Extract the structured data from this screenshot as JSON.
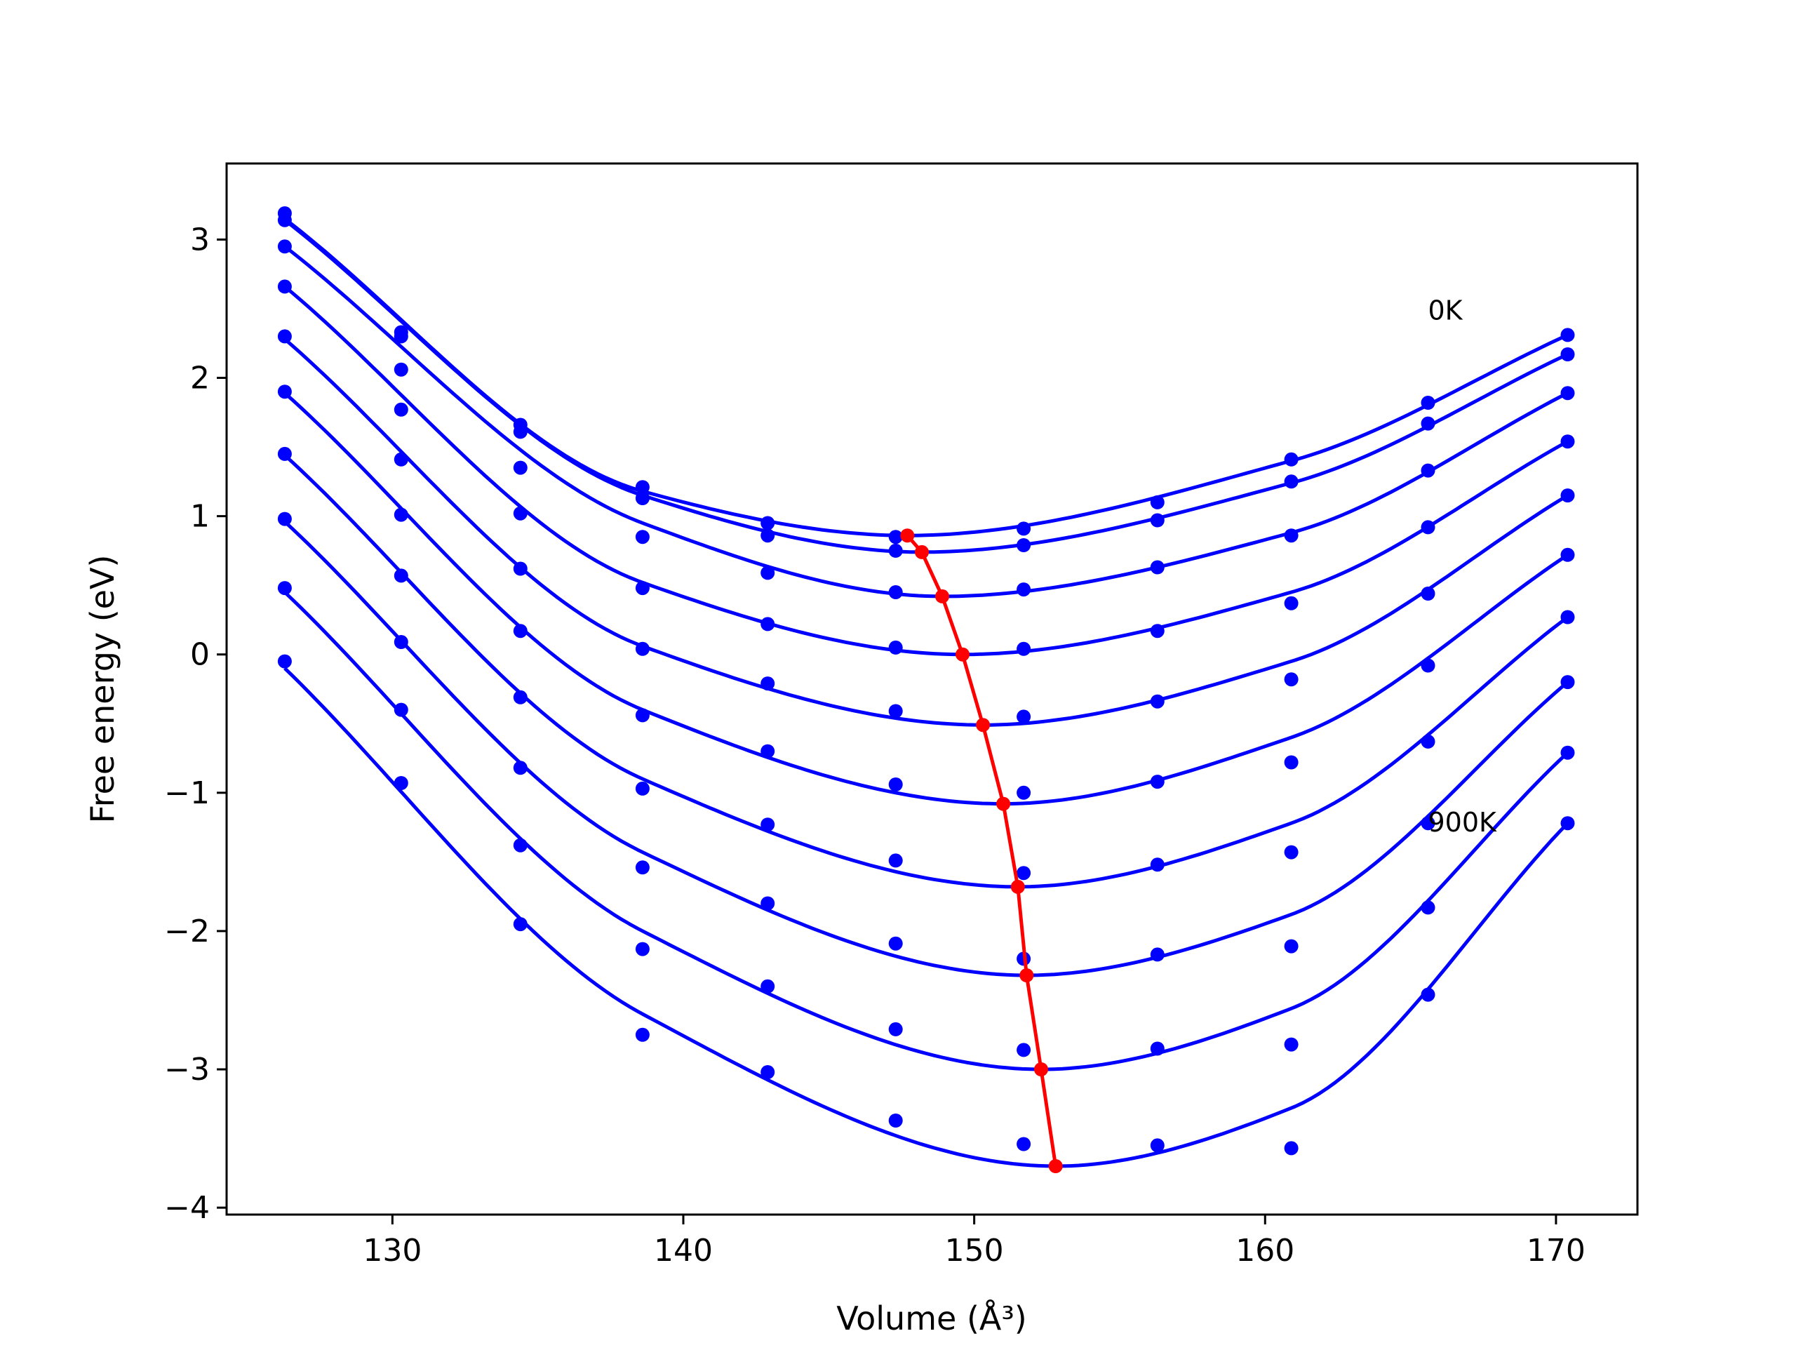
{
  "chart_data": {
    "type": "line",
    "title": "",
    "xlabel": "Volume (Å³)",
    "ylabel": "Free energy (eV)",
    "xlim": [
      124.3,
      172.8
    ],
    "ylim": [
      -4.05,
      3.55
    ],
    "xticks": [
      130,
      140,
      150,
      160,
      170
    ],
    "yticks": [
      -4,
      -3,
      -2,
      -1,
      0,
      1,
      2,
      3
    ],
    "xtick_labels": [
      "130",
      "140",
      "150",
      "160",
      "170"
    ],
    "ytick_labels": [
      "−4",
      "−3",
      "−2",
      "−1",
      "0",
      "1",
      "2",
      "3"
    ],
    "grid": false,
    "annotations": [
      {
        "text": "0K",
        "x": 165.6,
        "y": 2.42
      },
      {
        "text": "900K",
        "x": 165.6,
        "y": -1.28
      }
    ],
    "points_x": [
      126.3,
      130.3,
      134.4,
      138.6,
      142.9,
      147.3,
      151.7,
      156.3,
      160.9,
      165.6,
      170.4
    ],
    "series": [
      {
        "values": [
          3.19,
          2.33,
          1.66,
          1.21,
          0.95,
          0.85,
          0.91,
          1.1,
          1.41,
          1.82,
          2.31
        ],
        "fit": [
          [
            126.3,
            3.15
          ],
          [
            138.6,
            1.18
          ],
          [
            147.7,
            0.86
          ],
          [
            160.9,
            1.4
          ],
          [
            170.4,
            2.31
          ]
        ]
      },
      {
        "values": [
          3.14,
          2.3,
          1.61,
          1.13,
          0.86,
          0.75,
          0.79,
          0.97,
          1.25,
          1.67,
          2.17
        ],
        "fit": [
          [
            126.3,
            3.14
          ],
          [
            138.6,
            1.15
          ],
          [
            148.2,
            0.74
          ],
          [
            160.9,
            1.24
          ],
          [
            170.4,
            2.17
          ]
        ]
      },
      {
        "values": [
          2.95,
          2.06,
          1.35,
          0.85,
          0.59,
          0.45,
          0.47,
          0.63,
          0.86,
          1.33,
          1.89
        ],
        "fit": [
          [
            126.3,
            2.95
          ],
          [
            138.6,
            0.95
          ],
          [
            148.9,
            0.42
          ],
          [
            160.9,
            0.88
          ],
          [
            170.4,
            1.89
          ]
        ]
      },
      {
        "values": [
          2.66,
          1.77,
          1.02,
          0.48,
          0.22,
          0.05,
          0.04,
          0.17,
          0.37,
          0.92,
          1.54
        ],
        "fit": [
          [
            126.3,
            2.66
          ],
          [
            138.6,
            0.52
          ],
          [
            149.6,
            0.0
          ],
          [
            160.9,
            0.45
          ],
          [
            170.4,
            1.54
          ]
        ]
      },
      {
        "values": [
          2.3,
          1.41,
          0.62,
          0.04,
          -0.21,
          -0.41,
          -0.45,
          -0.34,
          -0.18,
          0.44,
          1.15
        ],
        "fit": [
          [
            126.3,
            2.28
          ],
          [
            138.6,
            0.06
          ],
          [
            150.3,
            -0.51
          ],
          [
            160.9,
            -0.05
          ],
          [
            170.4,
            1.15
          ]
        ]
      },
      {
        "values": [
          1.9,
          1.01,
          0.17,
          -0.44,
          -0.7,
          -0.94,
          -1.0,
          -0.92,
          -0.78,
          -0.08,
          0.72
        ],
        "fit": [
          [
            126.3,
            1.89
          ],
          [
            138.6,
            -0.4
          ],
          [
            151.0,
            -1.08
          ],
          [
            160.9,
            -0.6
          ],
          [
            170.4,
            0.72
          ]
        ]
      },
      {
        "values": [
          1.45,
          0.57,
          -0.31,
          -0.97,
          -1.23,
          -1.49,
          -1.58,
          -1.52,
          -1.43,
          -0.63,
          0.27
        ],
        "fit": [
          [
            126.3,
            1.44
          ],
          [
            138.6,
            -0.9
          ],
          [
            151.5,
            -1.68
          ],
          [
            160.9,
            -1.22
          ],
          [
            170.4,
            0.27
          ]
        ]
      },
      {
        "values": [
          0.98,
          0.09,
          -0.82,
          -1.54,
          -1.8,
          -2.09,
          -2.2,
          -2.17,
          -2.11,
          -1.22,
          -0.2
        ],
        "fit": [
          [
            126.3,
            0.96
          ],
          [
            138.6,
            -1.43
          ],
          [
            151.8,
            -2.32
          ],
          [
            160.9,
            -1.88
          ],
          [
            170.4,
            -0.2
          ]
        ]
      },
      {
        "values": [
          0.48,
          -0.4,
          -1.38,
          -2.13,
          -2.4,
          -2.71,
          -2.86,
          -2.85,
          -2.82,
          -1.83,
          -0.71
        ],
        "fit": [
          [
            126.3,
            0.45
          ],
          [
            138.6,
            -2.0
          ],
          [
            152.3,
            -3.0
          ],
          [
            160.9,
            -2.56
          ],
          [
            170.4,
            -0.71
          ]
        ]
      },
      {
        "values": [
          -0.05,
          -0.93,
          -1.95,
          -2.75,
          -3.02,
          -3.37,
          -3.54,
          -3.55,
          -3.57,
          -2.46,
          -1.22
        ],
        "fit": [
          [
            126.3,
            -0.1
          ],
          [
            138.6,
            -2.6
          ],
          [
            152.8,
            -3.7
          ],
          [
            160.9,
            -3.28
          ],
          [
            170.4,
            -1.22
          ]
        ]
      }
    ],
    "minima_line": {
      "x": [
        147.7,
        148.2,
        148.9,
        149.6,
        150.3,
        151.0,
        151.5,
        151.8,
        152.3,
        152.8
      ],
      "y": [
        0.86,
        0.74,
        0.42,
        0.0,
        -0.51,
        -1.08,
        -1.68,
        -2.32,
        -3.0,
        -3.7
      ]
    },
    "colors": {
      "curves": "#0000ff",
      "points": "#0000ff",
      "minima_line": "#ff0000",
      "axes": "#000000"
    }
  }
}
